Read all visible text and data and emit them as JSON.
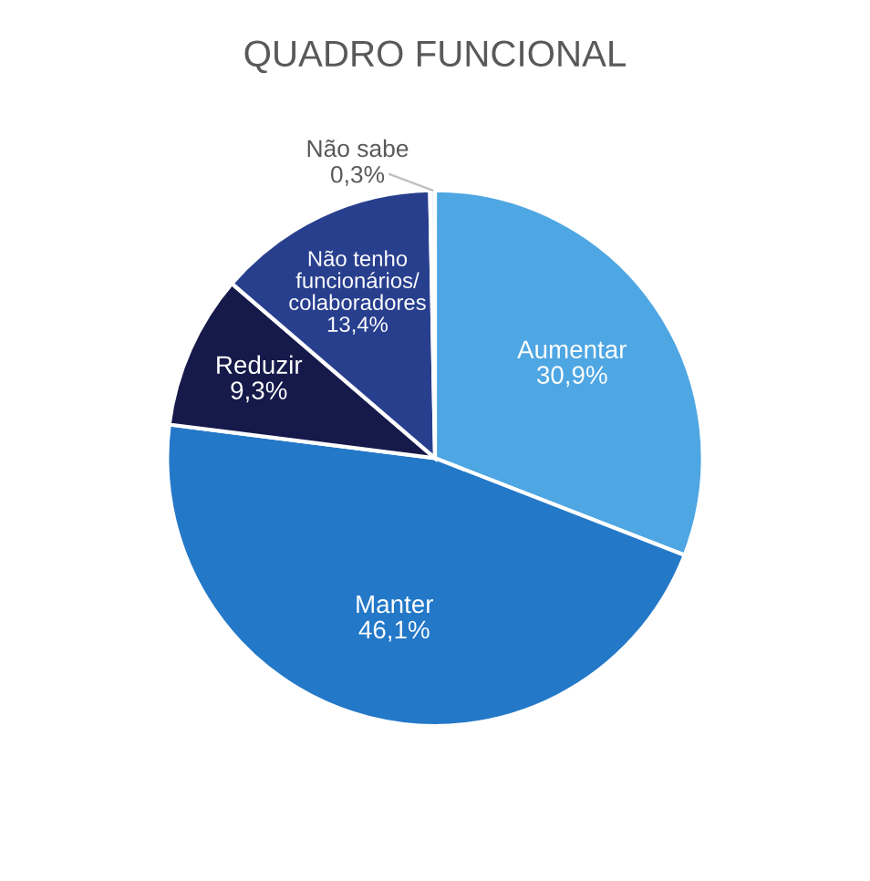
{
  "chart_data": {
    "type": "pie",
    "title": "QUADRO FUNCIONAL",
    "categories": [
      "Aumentar",
      "Manter",
      "Reduzir",
      "Não tenho\nfuncionários/\ncolaboradores",
      "Não sabe"
    ],
    "values": [
      30.9,
      46.1,
      9.3,
      13.4,
      0.3
    ],
    "value_labels": [
      "30,9%",
      "46,1%",
      "9,3%",
      "13,4%",
      "0,3%"
    ],
    "colors": [
      "#4ea6e2",
      "#2378c8",
      "#161a4a",
      "#283f8e",
      "#eef2f8"
    ],
    "legend": false
  }
}
